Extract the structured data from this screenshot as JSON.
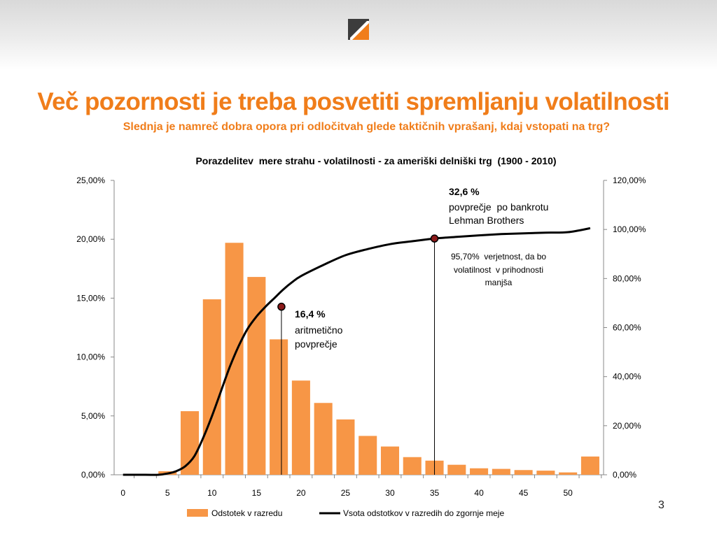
{
  "slide": {
    "title": "Več pozornosti je treba posvetiti spremljanju volatilnosti",
    "subtitle": "Slednja je namreč dobra opora pri odločitvah glede taktičnih vprašanj, kdaj vstopati na trg?",
    "page_number": "3"
  },
  "colors": {
    "accent": "#f07d1a",
    "bar": "#f79646",
    "line": "#000000"
  },
  "chart_data": {
    "type": "bar",
    "title": "Porazdelitev  mere strahu - volatilnosti - za ameriški delniški trg  (1900 - 2010)",
    "x": [
      2.5,
      5,
      7.5,
      10,
      12.5,
      15,
      17.5,
      20,
      22.5,
      25,
      27.5,
      30,
      32.5,
      35,
      37.5,
      40,
      42.5,
      45,
      47.5,
      50,
      52.5
    ],
    "xlim": [
      -1,
      54
    ],
    "xticks": [
      "0",
      "5",
      "10",
      "15",
      "20",
      "25",
      "30",
      "35",
      "40",
      "45",
      "50"
    ],
    "ylim_left": [
      0,
      25
    ],
    "yticks_left": [
      "0,00%",
      "5,00%",
      "10,00%",
      "15,00%",
      "20,00%",
      "25,00%"
    ],
    "ylim_right": [
      0,
      120
    ],
    "yticks_right": [
      "0,00%",
      "20,00%",
      "40,00%",
      "60,00%",
      "80,00%",
      "100,00%",
      "120,00%"
    ],
    "series": [
      {
        "name": "Odstotek v razredu",
        "kind": "bar",
        "axis": "left",
        "x": [
          5,
          7.5,
          10,
          12.5,
          15,
          17.5,
          20,
          22.5,
          25,
          27.5,
          30,
          32.5,
          35,
          37.5,
          40,
          42.5,
          45,
          47.5,
          50,
          52.5
        ],
        "values": [
          0.3,
          5.4,
          14.9,
          19.7,
          16.8,
          11.5,
          8.0,
          6.1,
          4.7,
          3.3,
          2.4,
          1.5,
          1.2,
          0.85,
          0.55,
          0.5,
          0.4,
          0.35,
          0.2,
          1.55
        ]
      },
      {
        "name": "Vsota odstotkov v razredih do zgornje meje",
        "kind": "line",
        "axis": "right",
        "x": [
          0,
          2.5,
          4,
          5,
          6,
          7,
          8,
          9,
          10,
          11,
          12,
          13,
          14,
          15,
          16,
          17,
          18,
          19,
          20,
          22.5,
          25,
          27.5,
          30,
          32.5,
          35,
          37.5,
          40,
          42.5,
          45,
          47.5,
          50,
          52.5
        ],
        "values": [
          0,
          0,
          0,
          0.5,
          1.5,
          3.5,
          7.5,
          15,
          24,
          34,
          44,
          52.5,
          59.5,
          64.5,
          68.5,
          72,
          75.5,
          78.5,
          81,
          85.5,
          89.5,
          92,
          94,
          95.2,
          96.3,
          97.0,
          97.6,
          98.1,
          98.4,
          98.7,
          98.9,
          100.5
        ]
      }
    ],
    "markers": [
      {
        "x": 17.8,
        "value": 68.5,
        "axis": "right"
      },
      {
        "x": 35,
        "value": 96.3,
        "axis": "right"
      }
    ],
    "annotations": {
      "a1_value": "32,6 %",
      "a1_line1": "povprečje  po bankrotu",
      "a1_line2": "Lehman Brothers",
      "a2_line1": "95,70%  verjetnost, da bo",
      "a2_line2": "volatilnost  v prihodnosti",
      "a2_line3": "manjša",
      "a3_value": "16,4 %",
      "a3_line1": "aritmetično",
      "a3_line2": "povprečje"
    },
    "legend_position": "bottom"
  }
}
